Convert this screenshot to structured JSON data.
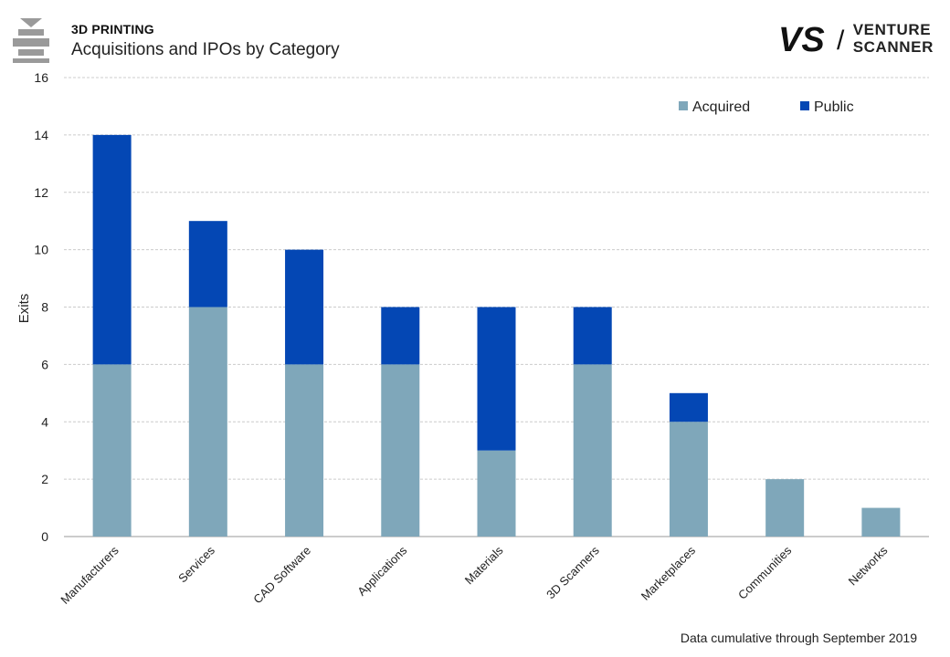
{
  "header": {
    "section_label": "3D PRINTING",
    "chart_title": "Acquisitions and IPOs by Category",
    "logo_icon": "stacked-bars-icon"
  },
  "brand": {
    "mark": "VS",
    "name_line1": "VENTURE",
    "name_line2": "SCANNER",
    "separator": "/"
  },
  "footnote": "Data cumulative through September 2019",
  "colors": {
    "acquired": "#7fa7ba",
    "public": "#0447b4",
    "grid": "#cccccc",
    "axis": "#999999"
  },
  "chart_data": {
    "type": "bar",
    "stacked": true,
    "categories": [
      "Manufacturers",
      "Services",
      "CAD Software",
      "Applications",
      "Materials",
      "3D Scanners",
      "Marketplaces",
      "Communities",
      "Networks"
    ],
    "series": [
      {
        "name": "Acquired",
        "values": [
          6,
          8,
          6,
          6,
          3,
          6,
          4,
          2,
          1
        ]
      },
      {
        "name": "Public",
        "values": [
          8,
          3,
          4,
          2,
          5,
          2,
          1,
          0,
          0
        ]
      }
    ],
    "title": "Acquisitions and IPOs by Category",
    "xlabel": "",
    "ylabel": "Exits",
    "ylim": [
      0,
      16
    ],
    "yticks": [
      "0",
      "2",
      "4",
      "6",
      "8",
      "10",
      "12",
      "14",
      "16"
    ],
    "grid": true,
    "legend_position": "top-right"
  }
}
